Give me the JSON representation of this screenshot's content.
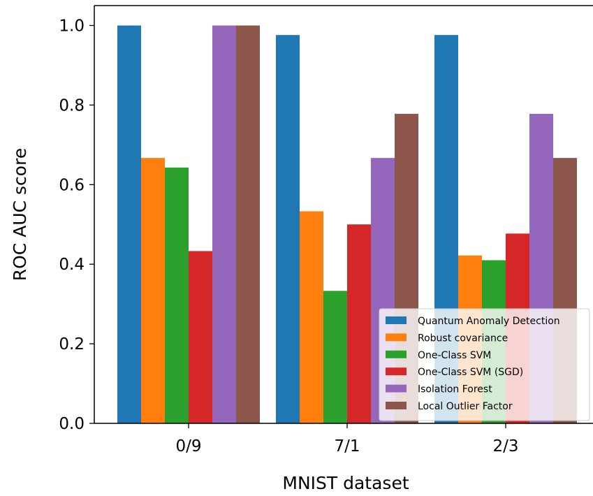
{
  "chart_data": {
    "type": "bar",
    "title": "",
    "xlabel": "MNIST dataset",
    "ylabel": "ROC AUC score",
    "ylim": [
      0,
      1.05
    ],
    "yticks": [
      "0.0",
      "0.2",
      "0.4",
      "0.6",
      "0.8",
      "1.0"
    ],
    "categories": [
      "0/9",
      "7/1",
      "2/3"
    ],
    "series": [
      {
        "name": "Quantum Anomaly Detection",
        "color": "#1f77b4",
        "values": [
          1.0,
          0.976,
          0.976
        ]
      },
      {
        "name": "Robust covariance",
        "color": "#ff7f0e",
        "values": [
          0.667,
          0.533,
          0.422
        ]
      },
      {
        "name": "One-Class SVM",
        "color": "#2ca02c",
        "values": [
          0.643,
          0.333,
          0.41
        ]
      },
      {
        "name": "One-Class SVM (SGD)",
        "color": "#d62728",
        "values": [
          0.433,
          0.5,
          0.477
        ]
      },
      {
        "name": "Isolation Forest",
        "color": "#9467bd",
        "values": [
          1.0,
          0.667,
          0.778
        ]
      },
      {
        "name": "Local Outlier Factor",
        "color": "#8c564b",
        "values": [
          1.0,
          0.778,
          0.667
        ]
      }
    ],
    "legend_position": "lower-right",
    "grid": false
  }
}
